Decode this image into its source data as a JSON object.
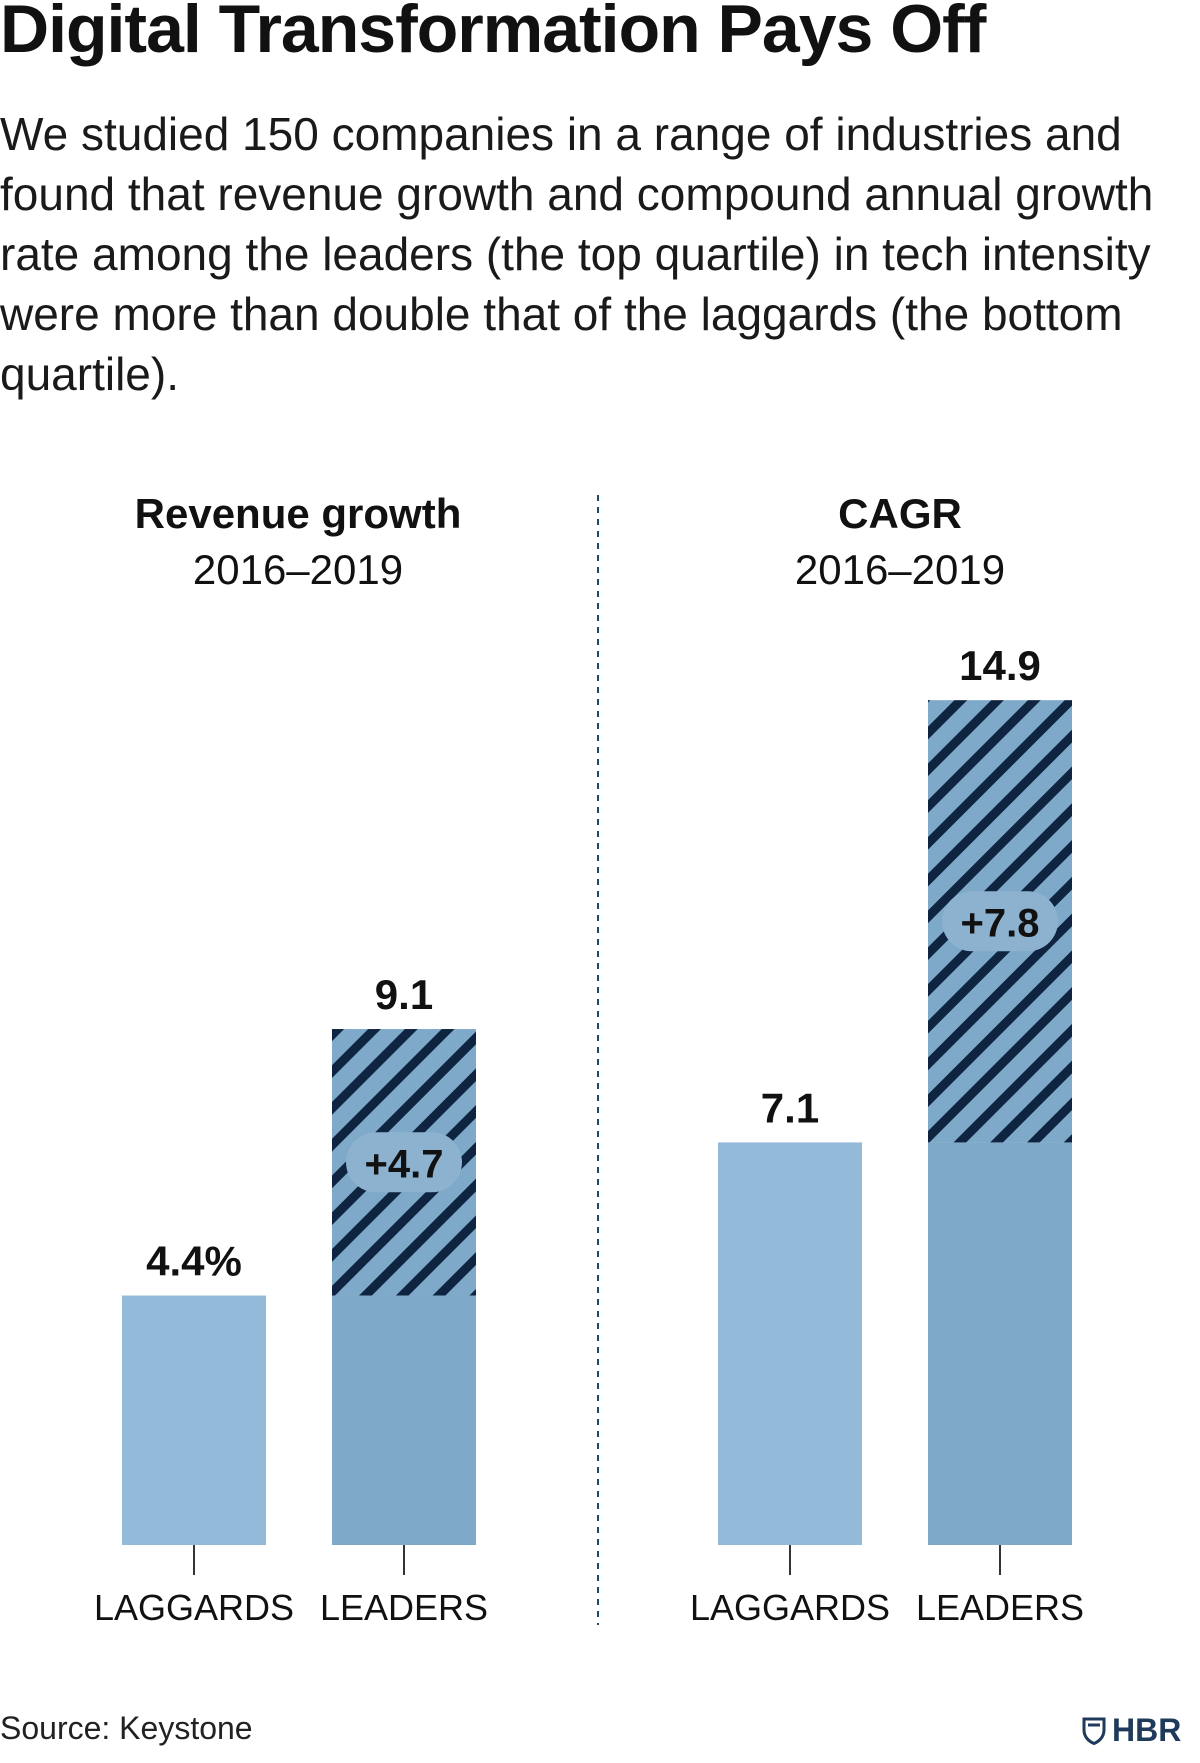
{
  "title": "Digital Transformation Pays Off",
  "subtitle": "We studied 150 companies in a range of industries and found that revenue growth and compound annual growth rate among the leaders (the top quartile) in tech intensity were more than double that of the laggards (the bottom quartile).",
  "source": "Source: Keystone",
  "logo_text": "HBR",
  "logo_icon": "shield-icon",
  "colors": {
    "laggards_bar": "#94bad9",
    "leaders_base": "#7ea9c8",
    "hatch_dark": "#0f2440",
    "pill": "#8db2cf",
    "text": "#111111"
  },
  "chart_data": [
    {
      "type": "bar",
      "title": "Revenue growth",
      "subtitle": "2016–2019",
      "categories": [
        "LAGGARDS",
        "LEADERS"
      ],
      "values": [
        4.4,
        9.1
      ],
      "value_labels": [
        "4.4%",
        "9.1"
      ],
      "increment": 4.7,
      "increment_label": "+4.7",
      "ylim": [
        0,
        16
      ]
    },
    {
      "type": "bar",
      "title": "CAGR",
      "subtitle": "2016–2019",
      "categories": [
        "LAGGARDS",
        "LEADERS"
      ],
      "values": [
        7.1,
        14.9
      ],
      "value_labels": [
        "7.1",
        "14.9"
      ],
      "increment": 7.8,
      "increment_label": "+7.8",
      "ylim": [
        0,
        16
      ]
    }
  ]
}
